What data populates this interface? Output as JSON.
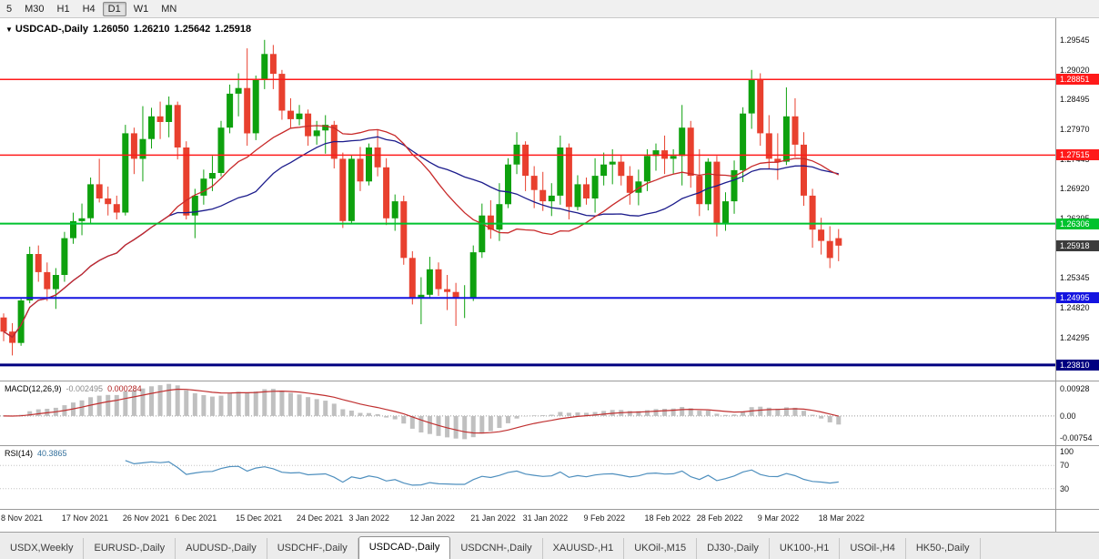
{
  "toolbar": {
    "timeframes": [
      "5",
      "M30",
      "H1",
      "H4",
      "D1",
      "W1",
      "MN"
    ],
    "active": "D1"
  },
  "header": {
    "marker": "▼",
    "symbol": "USDCAD-,Daily",
    "open": "1.26050",
    "high": "1.26210",
    "low": "1.25642",
    "close": "1.25918"
  },
  "macd": {
    "label": "MACD(12,26,9)",
    "main_value": "-0.002495",
    "signal_value": "0.000284",
    "params": {
      "fast": 12,
      "slow": 26,
      "signal": 9
    },
    "scale": {
      "min": -0.00754,
      "max": 0.00928,
      "top_label": "0.00928",
      "zero_label": "0.00",
      "bottom_label": "-0.00754"
    }
  },
  "rsi": {
    "label": "RSI(14)",
    "value": "40.3865",
    "period": 14,
    "levels": [
      100,
      70,
      30
    ],
    "level_labels": [
      "100",
      "70",
      "30"
    ]
  },
  "colors": {
    "bull": "#0ea10e",
    "bear": "#e8402e",
    "ma_fast": "#c82a2a",
    "ma_slow": "#1c1c8c",
    "hline_red": "#ff1a1a",
    "hline_green": "#00c22e",
    "hline_blue": "#1414e0",
    "hline_navy": "#000080",
    "macd_hist": "#c0c0c0",
    "macd_signal": "#c03030",
    "rsi_line": "#4e8fbe",
    "current_tag_bg": "#3c3c3c"
  },
  "chart_data": {
    "type": "candlestick",
    "title": "USDCAD-,Daily",
    "y_axis": {
      "min": 1.236,
      "max": 1.299,
      "labels": [
        "1.29545",
        "1.29020",
        "1.28495",
        "1.27970",
        "1.27445",
        "1.26920",
        "1.26395",
        "1.25870",
        "1.25345",
        "1.24820",
        "1.24295",
        "1.23770"
      ]
    },
    "x_labels": [
      {
        "text": "8 Nov 2021",
        "i": 0
      },
      {
        "text": "17 Nov 2021",
        "i": 7
      },
      {
        "text": "26 Nov 2021",
        "i": 14
      },
      {
        "text": "6 Dec 2021",
        "i": 20
      },
      {
        "text": "15 Dec 2021",
        "i": 27
      },
      {
        "text": "24 Dec 2021",
        "i": 34
      },
      {
        "text": "3 Jan 2022",
        "i": 40
      },
      {
        "text": "12 Jan 2022",
        "i": 47
      },
      {
        "text": "21 Jan 2022",
        "i": 54
      },
      {
        "text": "31 Jan 2022",
        "i": 60
      },
      {
        "text": "9 Feb 2022",
        "i": 67
      },
      {
        "text": "18 Feb 2022",
        "i": 74
      },
      {
        "text": "28 Feb 2022",
        "i": 80
      },
      {
        "text": "9 Mar 2022",
        "i": 87
      },
      {
        "text": "18 Mar 2022",
        "i": 94
      }
    ],
    "hlines": [
      {
        "price": 1.28851,
        "label": "1.28851",
        "color": "#ff1a1a",
        "width": 1.5
      },
      {
        "price": 1.27515,
        "label": "1.27515",
        "color": "#ff1a1a",
        "width": 1.5
      },
      {
        "price": 1.26306,
        "label": "1.26306",
        "color": "#00c22e",
        "width": 2
      },
      {
        "price": 1.24995,
        "label": "1.24995",
        "color": "#1414e0",
        "width": 2
      },
      {
        "price": 1.2381,
        "label": "1.23810",
        "color": "#000080",
        "width": 3
      }
    ],
    "current_price": {
      "value": 1.25918,
      "label": "1.25918"
    },
    "candles": [
      [
        1.2465,
        1.2472,
        1.2423,
        1.244
      ],
      [
        1.244,
        1.2455,
        1.2398,
        1.242
      ],
      [
        1.242,
        1.25,
        1.2415,
        1.2495
      ],
      [
        1.2495,
        1.259,
        1.249,
        1.2577
      ],
      [
        1.2577,
        1.2592,
        1.2528,
        1.2545
      ],
      [
        1.2545,
        1.2562,
        1.2494,
        1.2515
      ],
      [
        1.2515,
        1.2552,
        1.248,
        1.254
      ],
      [
        1.254,
        1.2616,
        1.2528,
        1.2605
      ],
      [
        1.2605,
        1.265,
        1.2595,
        1.2635
      ],
      [
        1.2635,
        1.2666,
        1.261,
        1.264
      ],
      [
        1.264,
        1.2712,
        1.263,
        1.27
      ],
      [
        1.27,
        1.2745,
        1.2668,
        1.2675
      ],
      [
        1.2675,
        1.2696,
        1.2645,
        1.2665
      ],
      [
        1.2665,
        1.268,
        1.2638,
        1.265
      ],
      [
        1.265,
        1.2805,
        1.2645,
        1.279
      ],
      [
        1.279,
        1.28,
        1.2718,
        1.2745
      ],
      [
        1.2745,
        1.2838,
        1.2705,
        1.278
      ],
      [
        1.278,
        1.2835,
        1.2763,
        1.282
      ],
      [
        1.282,
        1.2846,
        1.278,
        1.281
      ],
      [
        1.281,
        1.2855,
        1.2783,
        1.284
      ],
      [
        1.284,
        1.2846,
        1.2744,
        1.2765
      ],
      [
        1.2765,
        1.2776,
        1.2638,
        1.2645
      ],
      [
        1.2645,
        1.2692,
        1.2605,
        1.268
      ],
      [
        1.268,
        1.2726,
        1.2664,
        1.271
      ],
      [
        1.271,
        1.275,
        1.2688,
        1.272
      ],
      [
        1.272,
        1.2812,
        1.2714,
        1.28
      ],
      [
        1.28,
        1.2876,
        1.279,
        1.286
      ],
      [
        1.286,
        1.2896,
        1.282,
        1.287
      ],
      [
        1.287,
        1.294,
        1.2768,
        1.279
      ],
      [
        1.279,
        1.2892,
        1.2778,
        1.2885
      ],
      [
        1.2885,
        1.2955,
        1.2868,
        1.293
      ],
      [
        1.293,
        1.2946,
        1.2868,
        1.2895
      ],
      [
        1.2895,
        1.2902,
        1.2814,
        1.283
      ],
      [
        1.283,
        1.2852,
        1.2798,
        1.2815
      ],
      [
        1.2815,
        1.284,
        1.2804,
        1.2825
      ],
      [
        1.2825,
        1.2832,
        1.2768,
        1.2785
      ],
      [
        1.2785,
        1.2812,
        1.277,
        1.2795
      ],
      [
        1.2795,
        1.2822,
        1.2754,
        1.2805
      ],
      [
        1.2805,
        1.2812,
        1.2728,
        1.2745
      ],
      [
        1.2745,
        1.2756,
        1.2623,
        1.2635
      ],
      [
        1.2635,
        1.2752,
        1.263,
        1.2745
      ],
      [
        1.2745,
        1.2766,
        1.2688,
        1.2705
      ],
      [
        1.2705,
        1.2772,
        1.2698,
        1.2765
      ],
      [
        1.2765,
        1.2796,
        1.2714,
        1.273
      ],
      [
        1.273,
        1.2746,
        1.2628,
        1.264
      ],
      [
        1.264,
        1.2682,
        1.2618,
        1.267
      ],
      [
        1.267,
        1.268,
        1.2558,
        1.257
      ],
      [
        1.257,
        1.2582,
        1.2488,
        1.25
      ],
      [
        1.25,
        1.2536,
        1.2453,
        1.2505
      ],
      [
        1.2505,
        1.2572,
        1.2498,
        1.255
      ],
      [
        1.255,
        1.2562,
        1.2503,
        1.2515
      ],
      [
        1.2515,
        1.254,
        1.2478,
        1.251
      ],
      [
        1.251,
        1.2526,
        1.245,
        1.25
      ],
      [
        1.25,
        1.2522,
        1.2464,
        1.25
      ],
      [
        1.25,
        1.2592,
        1.2494,
        1.258
      ],
      [
        1.258,
        1.2666,
        1.257,
        1.2645
      ],
      [
        1.2645,
        1.2672,
        1.2604,
        1.262
      ],
      [
        1.262,
        1.2702,
        1.26,
        1.2665
      ],
      [
        1.2665,
        1.2746,
        1.2658,
        1.2735
      ],
      [
        1.2735,
        1.2792,
        1.2718,
        1.277
      ],
      [
        1.277,
        1.2776,
        1.2688,
        1.2715
      ],
      [
        1.2715,
        1.2732,
        1.2658,
        1.269
      ],
      [
        1.269,
        1.2722,
        1.2653,
        1.267
      ],
      [
        1.267,
        1.2702,
        1.2644,
        1.268
      ],
      [
        1.268,
        1.2786,
        1.2664,
        1.2765
      ],
      [
        1.2765,
        1.2772,
        1.2638,
        1.266
      ],
      [
        1.266,
        1.2716,
        1.2654,
        1.27
      ],
      [
        1.27,
        1.2712,
        1.2664,
        1.2675
      ],
      [
        1.2675,
        1.2746,
        1.265,
        1.2715
      ],
      [
        1.2715,
        1.2756,
        1.2698,
        1.2735
      ],
      [
        1.2735,
        1.2762,
        1.27,
        1.274
      ],
      [
        1.274,
        1.2752,
        1.2698,
        1.2715
      ],
      [
        1.2715,
        1.2732,
        1.2664,
        1.2685
      ],
      [
        1.2685,
        1.2726,
        1.2663,
        1.2705
      ],
      [
        1.2705,
        1.2762,
        1.2688,
        1.275
      ],
      [
        1.275,
        1.2772,
        1.2724,
        1.276
      ],
      [
        1.276,
        1.2786,
        1.2718,
        1.2745
      ],
      [
        1.2745,
        1.2762,
        1.2719,
        1.275
      ],
      [
        1.275,
        1.284,
        1.2698,
        1.28
      ],
      [
        1.28,
        1.2812,
        1.2694,
        1.2715
      ],
      [
        1.2715,
        1.2762,
        1.2644,
        1.2665
      ],
      [
        1.2665,
        1.2746,
        1.2654,
        1.274
      ],
      [
        1.274,
        1.275,
        1.2608,
        1.263
      ],
      [
        1.263,
        1.2686,
        1.2618,
        1.267
      ],
      [
        1.267,
        1.2742,
        1.2648,
        1.2725
      ],
      [
        1.2725,
        1.2836,
        1.2704,
        1.2825
      ],
      [
        1.2825,
        1.2902,
        1.2798,
        1.2885
      ],
      [
        1.2885,
        1.2896,
        1.2768,
        1.279
      ],
      [
        1.279,
        1.2822,
        1.2728,
        1.2745
      ],
      [
        1.2745,
        1.279,
        1.2708,
        1.274
      ],
      [
        1.274,
        1.2871,
        1.2734,
        1.282
      ],
      [
        1.282,
        1.2852,
        1.2748,
        1.277
      ],
      [
        1.277,
        1.2792,
        1.2662,
        1.268
      ],
      [
        1.268,
        1.2692,
        1.2588,
        1.262
      ],
      [
        1.262,
        1.2641,
        1.2576,
        1.26
      ],
      [
        1.26,
        1.2626,
        1.2552,
        1.257
      ],
      [
        1.2605,
        1.2621,
        1.25642,
        1.25918
      ]
    ]
  },
  "tabs": [
    {
      "label": "USDX,Weekly",
      "active": false
    },
    {
      "label": "EURUSD-,Daily",
      "active": false
    },
    {
      "label": "AUDUSD-,Daily",
      "active": false
    },
    {
      "label": "USDCHF-,Daily",
      "active": false
    },
    {
      "label": "USDCAD-,Daily",
      "active": true
    },
    {
      "label": "USDCNH-,Daily",
      "active": false
    },
    {
      "label": "XAUUSD-,H1",
      "active": false
    },
    {
      "label": "UKOil-,M15",
      "active": false
    },
    {
      "label": "DJ30-,Daily",
      "active": false
    },
    {
      "label": "UK100-,H1",
      "active": false
    },
    {
      "label": "USOil-,H4",
      "active": false
    },
    {
      "label": "HK50-,Daily",
      "active": false
    }
  ]
}
